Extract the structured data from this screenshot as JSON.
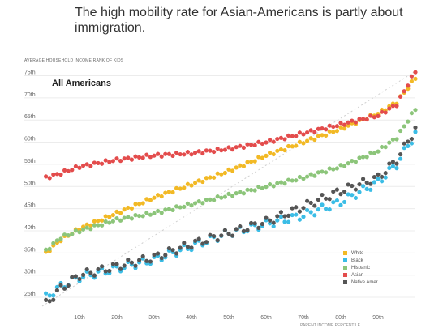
{
  "headline": "The high mobility rate for Asian-Americans is partly about immigration.",
  "inset_label": "All Americans",
  "chart_data": {
    "type": "scatter",
    "title": "The high mobility rate for Asian-Americans is partly about immigration.",
    "ylabel": "AVERAGE HOUSEHOLD INCOME RANK OF KIDS",
    "xlabel": "PARENT INCOME PERCENTILE",
    "xlim": [
      0,
      100
    ],
    "ylim": [
      23,
      76
    ],
    "x_ticks": [
      10,
      20,
      30,
      40,
      50,
      60,
      70,
      80,
      90
    ],
    "x_tick_labels": [
      "10th",
      "20th",
      "30th",
      "40th",
      "50th",
      "60th",
      "70th",
      "80th",
      "90th"
    ],
    "y_ticks": [
      25,
      30,
      35,
      40,
      45,
      50,
      55,
      60,
      65,
      70,
      75
    ],
    "y_tick_labels": [
      "25th",
      "30th",
      "35th",
      "40th",
      "45th",
      "50th",
      "55th",
      "60th",
      "65th",
      "70th",
      "75th"
    ],
    "grid": "horizontal",
    "reference_line": "diagonal dotted line",
    "legend_position": "bottom-right",
    "series": [
      {
        "name": "White",
        "color": "#f2b925",
        "x": [
          1,
          5,
          10,
          20,
          30,
          40,
          50,
          60,
          70,
          80,
          90,
          95,
          100
        ],
        "y": [
          35,
          38,
          40.5,
          44,
          47.5,
          50.5,
          53.5,
          57,
          60,
          63,
          66.5,
          69,
          74.5
        ]
      },
      {
        "name": "Black",
        "color": "#3bbde6",
        "x": [
          1,
          5,
          10,
          20,
          30,
          40,
          50,
          60,
          70,
          80,
          90,
          95,
          100
        ],
        "y": [
          25,
          27.5,
          29.5,
          31.5,
          33.5,
          36.5,
          39.5,
          41.5,
          43.5,
          46.5,
          51,
          55,
          62
        ]
      },
      {
        "name": "Hispanic",
        "color": "#8cc57a",
        "x": [
          1,
          5,
          10,
          20,
          30,
          40,
          50,
          60,
          70,
          80,
          90,
          95,
          100
        ],
        "y": [
          35.5,
          38.5,
          40,
          42.5,
          44,
          46,
          48,
          50,
          52,
          54.5,
          58,
          61,
          67.5
        ]
      },
      {
        "name": "Asian",
        "color": "#e34c4c",
        "x": [
          1,
          5,
          10,
          20,
          30,
          40,
          50,
          60,
          70,
          80,
          90,
          95,
          100
        ],
        "y": [
          52,
          53,
          54.5,
          56,
          57,
          57.5,
          58.5,
          60,
          62,
          64,
          66,
          68.5,
          76
        ]
      },
      {
        "name": "Native Amer.",
        "color": "#555555",
        "x": [
          1,
          5,
          10,
          20,
          30,
          40,
          50,
          60,
          70,
          80,
          90,
          95,
          100
        ],
        "y": [
          23.5,
          27,
          30,
          32,
          34,
          37,
          39.5,
          42,
          45.5,
          49,
          52,
          56,
          63
        ]
      }
    ]
  }
}
